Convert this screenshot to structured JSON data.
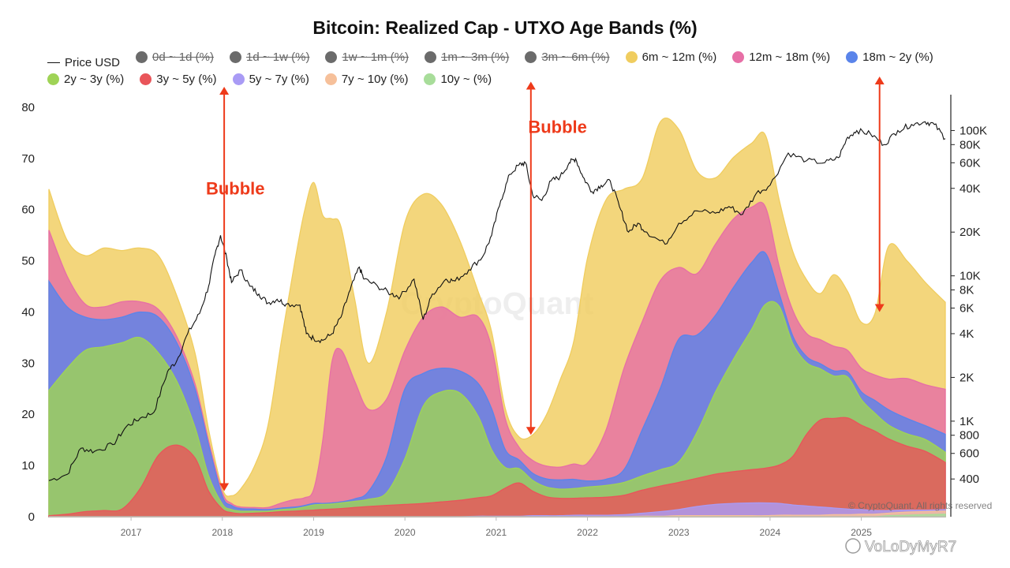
{
  "chart_data": {
    "type": "area",
    "title": "Bitcoin: Realized Cap - UTXO Age Bands (%)",
    "xlabel": "",
    "ylabel": "",
    "xlim": [
      2016.1,
      2025.92
    ],
    "ylim": [
      0,
      84
    ],
    "yticks": [
      0,
      10,
      20,
      30,
      40,
      50,
      60,
      70,
      80
    ],
    "y2_scale": "log",
    "y2lim": [
      220,
      200000
    ],
    "y2ticks": [
      {
        "v": 400,
        "label": "400"
      },
      {
        "v": 600,
        "label": "600"
      },
      {
        "v": 800,
        "label": "800"
      },
      {
        "v": 1000,
        "label": "1K"
      },
      {
        "v": 2000,
        "label": "2K"
      },
      {
        "v": 4000,
        "label": "4K"
      },
      {
        "v": 6000,
        "label": "6K"
      },
      {
        "v": 8000,
        "label": "8K"
      },
      {
        "v": 10000,
        "label": "10K"
      },
      {
        "v": 20000,
        "label": "20K"
      },
      {
        "v": 40000,
        "label": "40K"
      },
      {
        "v": 60000,
        "label": "60K"
      },
      {
        "v": 80000,
        "label": "80K"
      },
      {
        "v": 100000,
        "label": "100K"
      }
    ],
    "xticks": [
      {
        "v": 2017.0,
        "label": "2017"
      },
      {
        "v": 2018.0,
        "label": "2018"
      },
      {
        "v": 2019.0,
        "label": "2019"
      },
      {
        "v": 2020.0,
        "label": "2020"
      },
      {
        "v": 2021.0,
        "label": "2021"
      },
      {
        "v": 2022.0,
        "label": "2022"
      },
      {
        "v": 2023.0,
        "label": "2023"
      },
      {
        "v": 2024.0,
        "label": "2024"
      },
      {
        "v": 2025.0,
        "label": "2025"
      }
    ],
    "grid": false,
    "legend_position": "top",
    "legend": [
      {
        "label": "Price USD",
        "kind": "line",
        "color": "#111111",
        "active": true
      },
      {
        "label": "0d ~ 1d (%)",
        "kind": "dot",
        "color": "#6b6b6b",
        "active": false
      },
      {
        "label": "1d ~ 1w (%)",
        "kind": "dot",
        "color": "#6b6b6b",
        "active": false
      },
      {
        "label": "1w ~ 1m (%)",
        "kind": "dot",
        "color": "#6b6b6b",
        "active": false
      },
      {
        "label": "1m ~ 3m (%)",
        "kind": "dot",
        "color": "#6b6b6b",
        "active": false
      },
      {
        "label": "3m ~ 6m (%)",
        "kind": "dot",
        "color": "#6b6b6b",
        "active": false
      },
      {
        "label": "6m ~ 12m (%)",
        "kind": "dot",
        "color": "#f0cd5f",
        "active": true
      },
      {
        "label": "12m ~ 18m (%)",
        "kind": "dot",
        "color": "#e76fa6",
        "active": true
      },
      {
        "label": "18m ~ 2y (%)",
        "kind": "dot",
        "color": "#5a84ea",
        "active": true
      },
      {
        "label": "2y ~ 3y (%)",
        "kind": "dot",
        "color": "#9fd356",
        "active": true
      },
      {
        "label": "3y ~ 5y (%)",
        "kind": "dot",
        "color": "#e9555a",
        "active": true
      },
      {
        "label": "5y ~ 7y (%)",
        "kind": "dot",
        "color": "#a99bf5",
        "active": true
      },
      {
        "label": "7y ~ 10y (%)",
        "kind": "dot",
        "color": "#f6c09a",
        "active": true
      },
      {
        "label": "10y ~ (%)",
        "kind": "dot",
        "color": "#a8dd9a",
        "active": true
      }
    ],
    "x": [
      2016.1,
      2016.3,
      2016.5,
      2016.7,
      2016.9,
      2017.1,
      2017.3,
      2017.5,
      2017.7,
      2017.85,
      2018.0,
      2018.1,
      2018.2,
      2018.35,
      2018.5,
      2018.65,
      2018.8,
      2018.9,
      2019.0,
      2019.1,
      2019.2,
      2019.3,
      2019.45,
      2019.6,
      2019.8,
      2020.0,
      2020.2,
      2020.4,
      2020.6,
      2020.8,
      2020.95,
      2021.1,
      2021.25,
      2021.4,
      2021.55,
      2021.7,
      2021.85,
      2022.0,
      2022.2,
      2022.4,
      2022.6,
      2022.8,
      2023.0,
      2023.2,
      2023.4,
      2023.6,
      2023.8,
      2023.95,
      2024.1,
      2024.25,
      2024.4,
      2024.55,
      2024.7,
      2024.85,
      2025.0,
      2025.15,
      2025.3,
      2025.5,
      2025.7,
      2025.92
    ],
    "series": [
      {
        "name": "10y ~ (%)",
        "color": "#a8dd9a",
        "values": [
          0,
          0,
          0,
          0,
          0,
          0,
          0,
          0,
          0,
          0,
          0,
          0,
          0,
          0,
          0,
          0,
          0,
          0,
          0,
          0,
          0,
          0,
          0,
          0,
          0,
          0,
          0,
          0,
          0,
          0,
          0,
          0,
          0,
          0,
          0,
          0,
          0,
          0,
          0,
          0,
          0,
          0,
          0,
          0,
          0,
          0,
          0,
          0,
          0,
          0,
          0,
          0,
          0,
          0,
          0,
          0,
          0.2,
          0.3,
          0.4,
          0.5
        ]
      },
      {
        "name": "7y ~ 10y (%)",
        "color": "#f6c09a",
        "values": [
          0,
          0,
          0,
          0,
          0,
          0,
          0,
          0,
          0,
          0,
          0,
          0,
          0,
          0,
          0,
          0,
          0,
          0,
          0,
          0,
          0,
          0,
          0,
          0,
          0,
          0,
          0,
          0,
          0,
          0,
          0,
          0,
          0,
          0,
          0,
          0,
          0,
          0,
          0,
          0,
          0.1,
          0.1,
          0.2,
          0.2,
          0.2,
          0.2,
          0.2,
          0.2,
          0.3,
          0.3,
          0.3,
          0.3,
          0.4,
          0.4,
          0.5,
          0.5,
          0.5,
          0.6,
          0.6,
          0.6
        ]
      },
      {
        "name": "5y ~ 7y (%)",
        "color": "#a99bf5",
        "values": [
          0,
          0,
          0,
          0,
          0,
          0,
          0,
          0,
          0,
          0,
          0,
          0,
          0,
          0,
          0,
          0,
          0,
          0,
          0,
          0,
          0,
          0,
          0,
          0,
          0,
          0,
          0,
          0,
          0,
          0.1,
          0.1,
          0.1,
          0.1,
          0.2,
          0.2,
          0.2,
          0.3,
          0.3,
          0.3,
          0.4,
          0.6,
          0.9,
          1.2,
          1.8,
          2.2,
          2.4,
          2.5,
          2.5,
          2.3,
          2.0,
          1.8,
          1.6,
          1.3,
          1.1,
          0.9,
          0.7,
          0.5,
          0.4,
          0.3,
          0.3
        ]
      },
      {
        "name": "3y ~ 5y (%)",
        "color": "#e9555a",
        "values": [
          0.2,
          0.5,
          1.0,
          1.2,
          1.5,
          5.5,
          12.0,
          14.0,
          11.5,
          5.0,
          1.5,
          0.8,
          0.6,
          0.7,
          0.8,
          1.0,
          1.1,
          1.2,
          1.3,
          1.4,
          1.5,
          1.6,
          1.8,
          2.0,
          2.2,
          2.4,
          2.6,
          2.9,
          3.2,
          3.6,
          4.0,
          5.5,
          6.5,
          4.8,
          3.7,
          3.4,
          3.3,
          3.4,
          3.5,
          3.8,
          4.5,
          5.0,
          5.3,
          5.5,
          5.9,
          6.2,
          6.5,
          6.8,
          7.5,
          9.5,
          14.0,
          17.0,
          17.5,
          17.8,
          16.5,
          15.5,
          14.0,
          12.5,
          11.5,
          9.2
        ]
      },
      {
        "name": "2y ~ 3y (%)",
        "color": "#9fd356",
        "values": [
          24.5,
          28.5,
          31.5,
          32.0,
          32.5,
          29.5,
          20.0,
          12.5,
          6.0,
          3.0,
          1.0,
          0.6,
          0.5,
          0.4,
          0.3,
          0.4,
          0.5,
          0.7,
          1.0,
          1.0,
          1.0,
          1.1,
          1.2,
          1.4,
          2.5,
          9.0,
          19.0,
          21.5,
          21.0,
          16.0,
          9.0,
          4.0,
          2.8,
          2.1,
          1.9,
          1.8,
          1.9,
          2.1,
          2.3,
          2.5,
          2.8,
          3.2,
          4.0,
          9.0,
          16.0,
          22.0,
          27.5,
          32.0,
          31.0,
          22.0,
          14.0,
          10.0,
          8.3,
          8.0,
          5.0,
          3.5,
          2.7,
          2.4,
          2.3,
          2.0
        ]
      },
      {
        "name": "18m ~ 2y (%)",
        "color": "#5a84ea",
        "values": [
          21.3,
          12.0,
          6.5,
          5.3,
          5.0,
          5.0,
          7.0,
          7.5,
          7.5,
          6.0,
          1.5,
          0.8,
          0.5,
          0.4,
          0.3,
          0.3,
          0.3,
          0.3,
          0.3,
          0.2,
          0.2,
          0.2,
          0.5,
          1.5,
          7.0,
          13.6,
          6.4,
          4.6,
          4.3,
          6.4,
          8.0,
          3.5,
          1.7,
          1.4,
          1.6,
          1.8,
          1.8,
          1.2,
          1.2,
          2.5,
          9.0,
          16.0,
          24.0,
          19.0,
          15.0,
          14.0,
          13.0,
          10.0,
          2.5,
          1.5,
          1.2,
          1.0,
          1.0,
          1.0,
          1.5,
          2.5,
          3.0,
          3.0,
          2.7,
          3.5
        ]
      },
      {
        "name": "12m ~ 18m (%)",
        "color": "#e76fa6",
        "values": [
          10.0,
          6.0,
          2.5,
          2.5,
          3.0,
          2.0,
          1.5,
          1.2,
          1.0,
          0.8,
          0.7,
          0.4,
          0.3,
          0.3,
          0.4,
          1.0,
          1.5,
          1.5,
          2.7,
          12.3,
          27.5,
          29.7,
          23.0,
          16.1,
          11.3,
          7.5,
          11.0,
          12.0,
          10.5,
          13.0,
          12.0,
          6.0,
          2.5,
          2.5,
          2.5,
          2.5,
          3.0,
          3.5,
          9.5,
          19.8,
          21.1,
          21.0,
          14.0,
          12.0,
          13.9,
          13.4,
          10.8,
          9.0,
          5.3,
          5.0,
          4.5,
          4.7,
          4.8,
          4.2,
          4.6,
          5.0,
          6.0,
          7.8,
          8.0,
          8.8
        ]
      },
      {
        "name": "6m ~ 12m (%)",
        "color": "#f0cd5f",
        "values": [
          8.0,
          7.0,
          9.5,
          11.5,
          10.0,
          10.5,
          10.5,
          8.0,
          6.0,
          2.2,
          0.8,
          1.5,
          3.5,
          8.0,
          16.0,
          32.0,
          47.0,
          56.0,
          60.0,
          44.0,
          28.0,
          24.0,
          16.0,
          9.0,
          17.0,
          25.0,
          24.0,
          20.0,
          15.0,
          5.0,
          3.0,
          2.0,
          2.0,
          5.0,
          10.0,
          17.0,
          24.0,
          40.0,
          45.0,
          35.0,
          28.0,
          31.0,
          27.0,
          20.0,
          13.0,
          12.0,
          12.5,
          14.0,
          13.0,
          11.5,
          10.5,
          9.0,
          14.0,
          11.5,
          9.0,
          12.0,
          26.0,
          23.0,
          20.0,
          17.0
        ]
      }
    ],
    "price_usd": {
      "name": "Price USD",
      "points": [
        [
          2016.1,
          390
        ],
        [
          2016.3,
          430
        ],
        [
          2016.45,
          650
        ],
        [
          2016.6,
          620
        ],
        [
          2016.8,
          690
        ],
        [
          2016.95,
          920
        ],
        [
          2017.1,
          1050
        ],
        [
          2017.25,
          1150
        ],
        [
          2017.4,
          2200
        ],
        [
          2017.5,
          2600
        ],
        [
          2017.62,
          4000
        ],
        [
          2017.75,
          5500
        ],
        [
          2017.85,
          8500
        ],
        [
          2017.92,
          14000
        ],
        [
          2017.98,
          19000
        ],
        [
          2018.05,
          13000
        ],
        [
          2018.1,
          9000
        ],
        [
          2018.2,
          11000
        ],
        [
          2018.3,
          8500
        ],
        [
          2018.4,
          7500
        ],
        [
          2018.5,
          6500
        ],
        [
          2018.6,
          6900
        ],
        [
          2018.7,
          6400
        ],
        [
          2018.85,
          6300
        ],
        [
          2018.92,
          4000
        ],
        [
          2019.0,
          3700
        ],
        [
          2019.1,
          3600
        ],
        [
          2019.2,
          4000
        ],
        [
          2019.3,
          5200
        ],
        [
          2019.4,
          8000
        ],
        [
          2019.5,
          11500
        ],
        [
          2019.55,
          9500
        ],
        [
          2019.7,
          8500
        ],
        [
          2019.85,
          7500
        ],
        [
          2019.95,
          7200
        ],
        [
          2020.1,
          9500
        ],
        [
          2020.2,
          5000
        ],
        [
          2020.3,
          7500
        ],
        [
          2020.45,
          9500
        ],
        [
          2020.55,
          9200
        ],
        [
          2020.7,
          11000
        ],
        [
          2020.85,
          13500
        ],
        [
          2020.95,
          19000
        ],
        [
          2021.05,
          33000
        ],
        [
          2021.15,
          50000
        ],
        [
          2021.25,
          58000
        ],
        [
          2021.32,
          60000
        ],
        [
          2021.4,
          36000
        ],
        [
          2021.5,
          33000
        ],
        [
          2021.6,
          45000
        ],
        [
          2021.7,
          48000
        ],
        [
          2021.8,
          60000
        ],
        [
          2021.87,
          64000
        ],
        [
          2021.95,
          48000
        ],
        [
          2022.05,
          38000
        ],
        [
          2022.15,
          42000
        ],
        [
          2022.25,
          45000
        ],
        [
          2022.35,
          30000
        ],
        [
          2022.45,
          20000
        ],
        [
          2022.55,
          23000
        ],
        [
          2022.65,
          20000
        ],
        [
          2022.85,
          16500
        ],
        [
          2023.0,
          23000
        ],
        [
          2023.2,
          28000
        ],
        [
          2023.4,
          27000
        ],
        [
          2023.55,
          30000
        ],
        [
          2023.7,
          26500
        ],
        [
          2023.85,
          37000
        ],
        [
          2024.0,
          42000
        ],
        [
          2024.2,
          70000
        ],
        [
          2024.4,
          62000
        ],
        [
          2024.6,
          60000
        ],
        [
          2024.75,
          65000
        ],
        [
          2024.85,
          90000
        ],
        [
          2024.95,
          100000
        ],
        [
          2025.1,
          95000
        ],
        [
          2025.25,
          80000
        ],
        [
          2025.4,
          100000
        ],
        [
          2025.55,
          110000
        ],
        [
          2025.7,
          115000
        ],
        [
          2025.8,
          110000
        ],
        [
          2025.92,
          88000
        ]
      ]
    },
    "annotations": [
      {
        "text": "Bubble",
        "x": 2017.82,
        "y": 63
      },
      {
        "text": "Bubble",
        "x": 2021.35,
        "y": 75
      }
    ],
    "arrows": [
      {
        "x": 2018.02,
        "y_from": 5,
        "y_to": 84
      },
      {
        "x": 2021.38,
        "y_from": 16,
        "y_to": 85
      },
      {
        "x": 2025.2,
        "y_from": 40,
        "y_to": 86
      }
    ]
  },
  "watermarks": {
    "center": "CryptoQuant",
    "bottom_small": "© CryptoQuant. All rights reserved",
    "corner": "VoLoDyMyR7"
  }
}
